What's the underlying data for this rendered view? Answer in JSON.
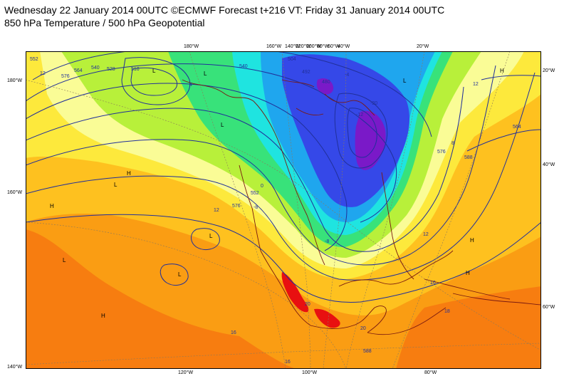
{
  "header": {
    "line1": "Wednesday 22 January 2014 00UTC ©ECMWF Forecast t+216 VT: Friday 31 January 2014 00UTC",
    "line2": "850 hPa Temperature / 500 hPa Geopotential"
  },
  "map": {
    "lon_top": [
      "180°W",
      "160°W",
      "140°W",
      "120°W",
      "100°W",
      "80°W",
      "60°W",
      "40°W",
      "20°W"
    ],
    "lon_bottom": [
      "120°W",
      "100°W",
      "80°W"
    ],
    "lat_left": [
      "180°W",
      "160°W",
      "140°W"
    ],
    "lat_right": [
      "20°W",
      "40°W",
      "60°W"
    ],
    "temperature_labels": [
      "12",
      "12",
      "12",
      "12",
      "16",
      "16",
      "16",
      "18",
      "20",
      "20",
      "-4",
      "-8",
      "-12",
      "-20",
      "-8",
      "0",
      "4",
      "8"
    ],
    "geopotential_labels": [
      "552",
      "576",
      "564",
      "540",
      "528",
      "516",
      "504",
      "492",
      "480",
      "564",
      "576",
      "588",
      "540",
      "552",
      "576",
      "588"
    ],
    "pressure_marks": [
      "L",
      "L",
      "L",
      "L",
      "L",
      "L",
      "H",
      "H",
      "H",
      "H",
      "H",
      "H",
      "L",
      "L"
    ],
    "colors": {
      "deep_cold": "#7a19c8",
      "cold": "#3548e8",
      "cool": "#1fa6ee",
      "cyan": "#1fe4e0",
      "green": "#38e27a",
      "lime": "#b8f03a",
      "pale": "#fafc96",
      "yellow": "#fde93c",
      "orange_light": "#fec11f",
      "orange": "#fa9d13",
      "orange_dark": "#f77d10",
      "red": "#e81010",
      "contour": "#21309a",
      "coast": "#7a1a10"
    }
  }
}
